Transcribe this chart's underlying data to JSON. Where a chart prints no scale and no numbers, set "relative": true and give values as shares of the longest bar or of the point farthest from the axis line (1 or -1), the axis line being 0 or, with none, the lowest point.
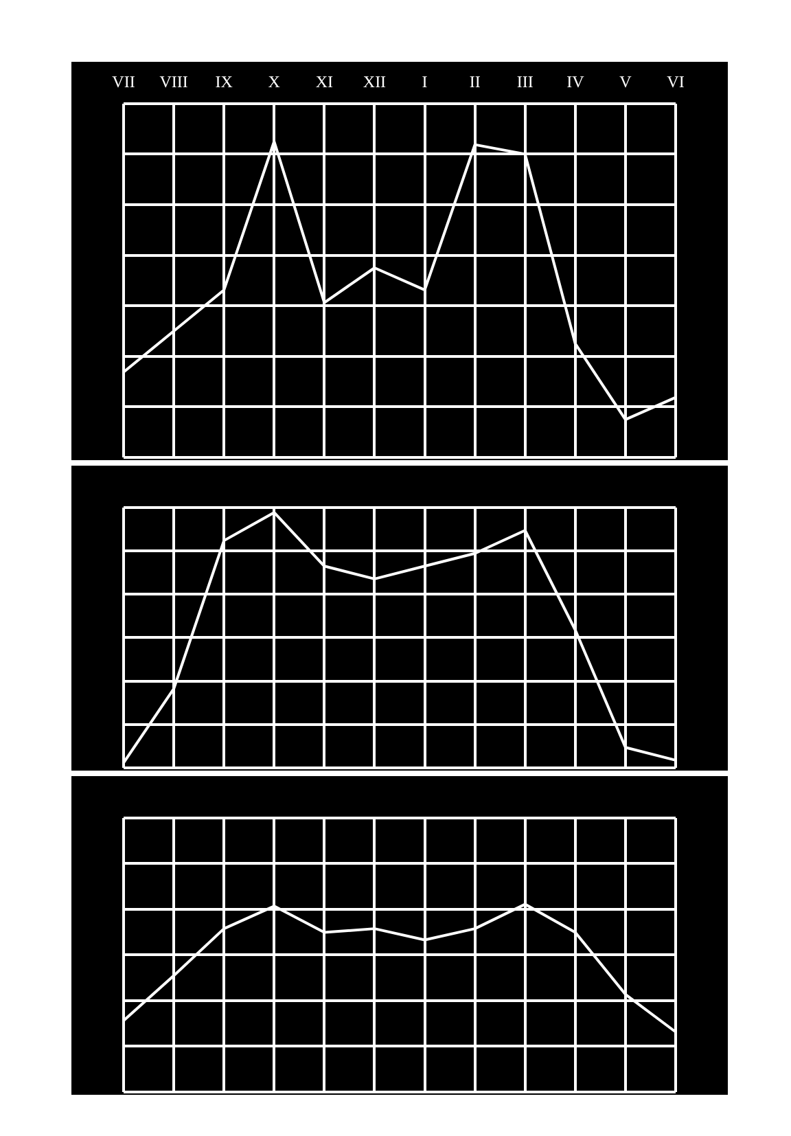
{
  "chart_data": [
    {
      "type": "line",
      "categories": [
        "VII",
        "VIII",
        "IX",
        "X",
        "XI",
        "XII",
        "I",
        "II",
        "III",
        "IV",
        "V",
        "VI"
      ],
      "relative": true,
      "grid": true,
      "tick_labels": "x",
      "marker": "none",
      "series": [
        {
          "color": "#ffffff",
          "values": [
            0.27,
            0.4,
            0.53,
            1,
            0.49,
            0.6,
            0.53,
            0.99,
            0.96,
            0.36,
            0.12,
            0.19
          ]
        }
      ]
    },
    {
      "type": "line",
      "categories": [
        null,
        null,
        null,
        null,
        null,
        null,
        null,
        null,
        null,
        null,
        null,
        null
      ],
      "relative": true,
      "grid": true,
      "marker": "none",
      "series": [
        {
          "color": "#ffffff",
          "values": [
            0.02,
            0.31,
            0.89,
            1,
            0.79,
            0.74,
            0.79,
            0.84,
            0.93,
            0.54,
            0.08,
            0.03
          ]
        }
      ]
    },
    {
      "type": "line",
      "categories": [
        null,
        null,
        null,
        null,
        null,
        null,
        null,
        null,
        null,
        null,
        null,
        null
      ],
      "relative": true,
      "grid": true,
      "marker": "none",
      "series": [
        {
          "color": "#ffffff",
          "values": [
            0.38,
            0.62,
            0.87,
            0.99,
            0.85,
            0.87,
            0.81,
            0.87,
            1,
            0.85,
            0.52,
            0.32
          ]
        }
      ]
    }
  ]
}
